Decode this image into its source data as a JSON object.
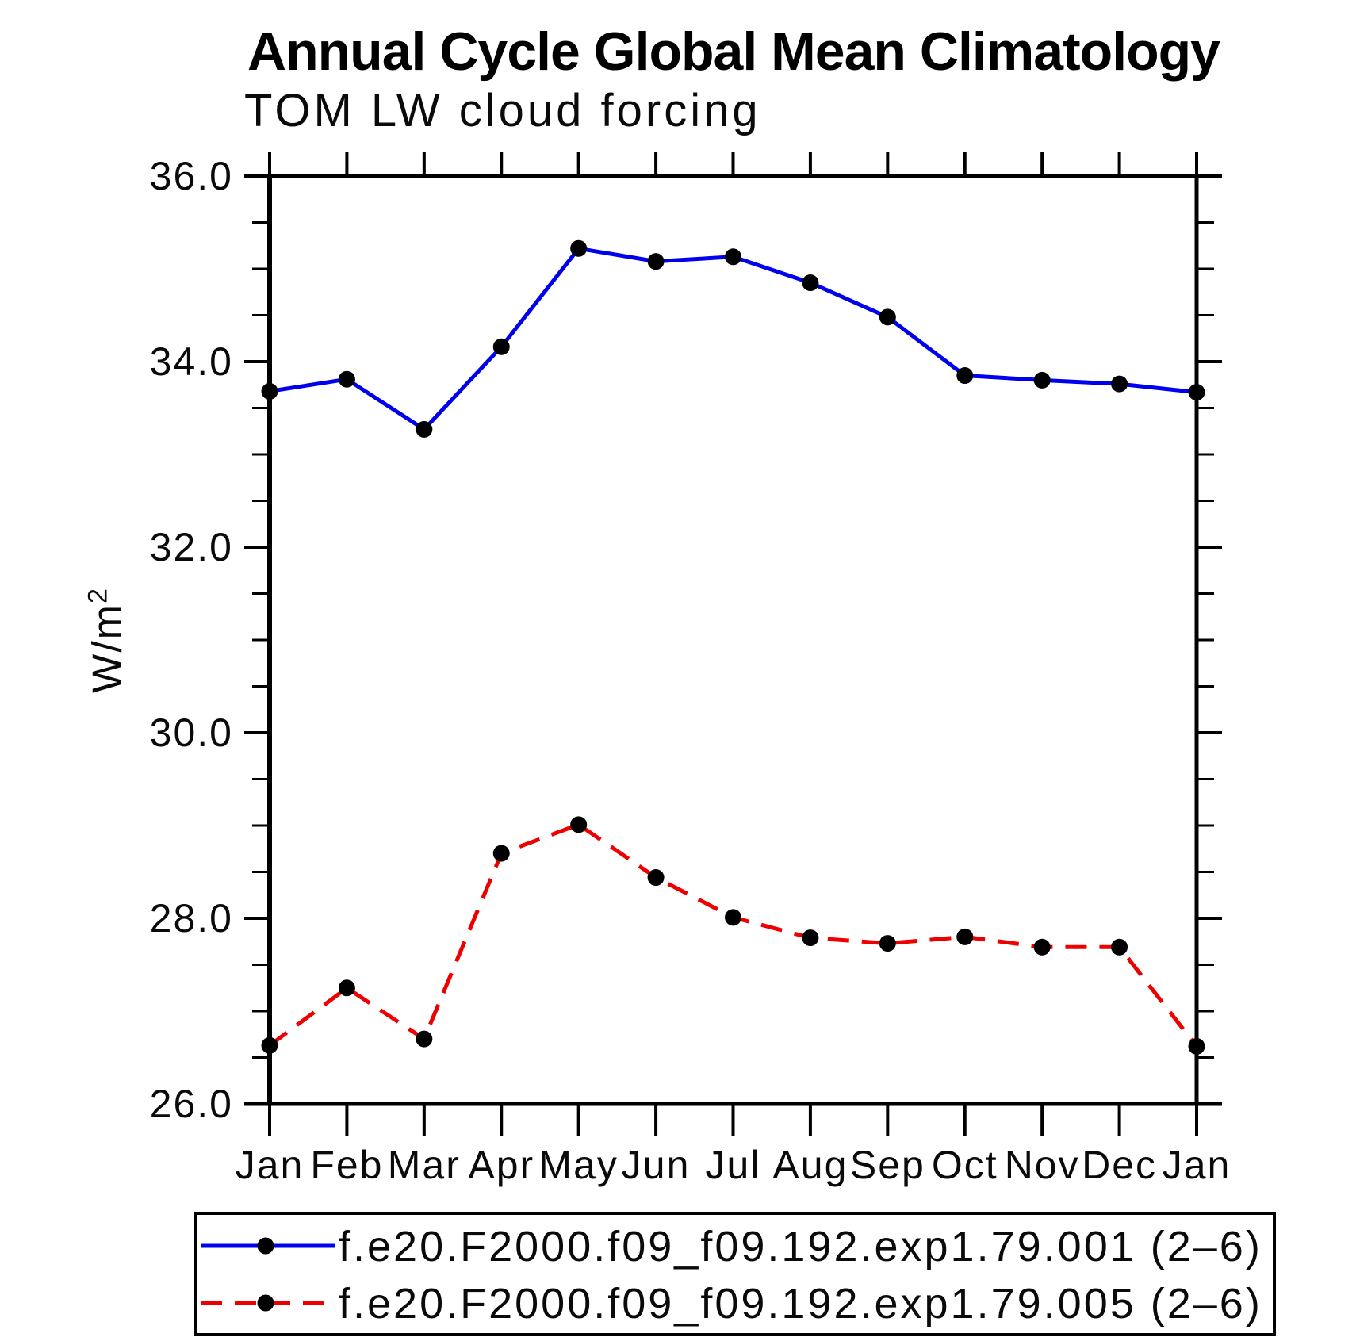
{
  "title": "Annual Cycle Global Mean Climatology",
  "subtitle": "TOM LW cloud forcing",
  "y_axis": {
    "label_base": "W/m",
    "label_sup": "2",
    "tick_labels": [
      "26.0",
      "28.0",
      "30.0",
      "32.0",
      "34.0",
      "36.0"
    ]
  },
  "x_axis": {
    "tick_labels": [
      "Jan",
      "Feb",
      "Mar",
      "Apr",
      "May",
      "Jun",
      "Jul",
      "Aug",
      "Sep",
      "Oct",
      "Nov",
      "Dec",
      "Jan"
    ]
  },
  "chart_data": {
    "type": "line",
    "title": "Annual Cycle Global Mean Climatology",
    "subtitle": "TOM LW cloud forcing",
    "ylabel": "W/m²",
    "xlabel": "",
    "categories": [
      "Jan",
      "Feb",
      "Mar",
      "Apr",
      "May",
      "Jun",
      "Jul",
      "Aug",
      "Sep",
      "Oct",
      "Nov",
      "Dec",
      "Jan"
    ],
    "ylim": [
      26.0,
      36.0
    ],
    "ytick_major": 2.0,
    "ytick_minor": 0.5,
    "grid": false,
    "legend_position": "bottom",
    "series": [
      {
        "name": "f.e20.F2000.f09_f09.192.exp1.79.001 (2–6)",
        "color": "#0000ee",
        "line_style": "solid",
        "marker": "filled-black-circle",
        "values": [
          33.68,
          33.81,
          33.27,
          34.16,
          35.22,
          35.08,
          35.13,
          34.85,
          34.48,
          33.85,
          33.8,
          33.76,
          33.67
        ]
      },
      {
        "name": "f.e20.F2000.f09_f09.192.exp1.79.005 (2–6)",
        "color": "#ee0000",
        "line_style": "dashed",
        "marker": "filled-black-circle",
        "values": [
          26.63,
          27.25,
          26.7,
          28.7,
          29.01,
          28.44,
          28.01,
          27.79,
          27.73,
          27.8,
          27.69,
          27.69,
          26.62
        ]
      }
    ]
  },
  "colors": {
    "axis": "#000000",
    "marker": "#000000",
    "text": "#0a0a0a",
    "series1": "#0000ee",
    "series2": "#ee0000",
    "background": "#ffffff"
  }
}
